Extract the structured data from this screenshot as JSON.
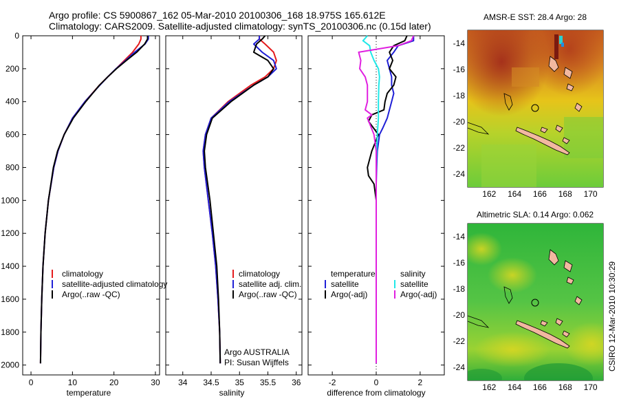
{
  "header": {
    "line1": "Argo profile: CS 5900867_162 05-Mar-2010 20100306_168 18.975S 165.612E",
    "line2": "Climatology: CARS2009. Satellite-adjusted climatology: synTS_20100306.nc (0.15d later)"
  },
  "credit": "CSIRO 12-Mar-2010 10:30:29",
  "colors": {
    "climatology": "#e41a1c",
    "satellite": "#1f1fd6",
    "argo": "#000000",
    "sat_diff": "#1fe8e8",
    "argo_sal_diff": "#e01fe0",
    "land": "#f2b8a0",
    "sst_warm": "#a0281a",
    "sla_green": "#33bb33"
  },
  "chart_data": [
    {
      "type": "line",
      "name": "temperature-profile",
      "xlabel": "temperature",
      "ylabel": "",
      "xlim": [
        -2,
        31
      ],
      "ylim": [
        2060,
        0
      ],
      "xticks": [
        0,
        10,
        20,
        30
      ],
      "yticks": [
        0,
        200,
        400,
        600,
        800,
        1000,
        1200,
        1400,
        1600,
        1800,
        2000
      ],
      "legend": [
        "climatology",
        "satellite-adjusted climatology",
        "Argo(..raw -QC)"
      ],
      "series": [
        {
          "name": "climatology",
          "color": "#e41a1c",
          "depth": [
            0,
            20,
            50,
            100,
            150,
            200,
            250,
            300,
            400,
            500,
            600,
            700,
            800,
            1000,
            1200,
            1400,
            1600,
            1800,
            1990
          ],
          "values": [
            26.5,
            26.5,
            26.0,
            24.5,
            22.5,
            20.5,
            18.5,
            16.5,
            13.0,
            10.0,
            8.0,
            6.5,
            5.5,
            4.2,
            3.4,
            2.9,
            2.6,
            2.4,
            2.3
          ]
        },
        {
          "name": "satellite-adjusted climatology",
          "color": "#1f1fd6",
          "depth": [
            0,
            20,
            50,
            100,
            150,
            200,
            250,
            300,
            400,
            500,
            600,
            700,
            800,
            1000,
            1200,
            1400,
            1600,
            1800,
            1990
          ],
          "values": [
            28.3,
            28.3,
            27.5,
            25.0,
            22.8,
            20.5,
            18.5,
            16.6,
            13.0,
            10.0,
            8.0,
            6.5,
            5.5,
            4.2,
            3.4,
            2.9,
            2.6,
            2.4,
            2.3
          ]
        },
        {
          "name": "Argo(..raw -QC)",
          "color": "#000000",
          "depth": [
            0,
            20,
            50,
            100,
            150,
            200,
            250,
            300,
            400,
            500,
            600,
            700,
            800,
            1000,
            1200,
            1400,
            1600,
            1800,
            1990
          ],
          "values": [
            28.1,
            28.1,
            27.4,
            25.5,
            23.0,
            20.6,
            18.5,
            16.5,
            13.2,
            10.2,
            8.0,
            6.4,
            5.4,
            4.2,
            3.4,
            2.9,
            2.6,
            2.4,
            2.3
          ]
        }
      ]
    },
    {
      "type": "line",
      "name": "salinity-profile",
      "xlabel": "salinity",
      "ylabel": "",
      "xlim": [
        33.7,
        36.1
      ],
      "ylim": [
        2060,
        0
      ],
      "xticks": [
        34,
        34.5,
        35,
        35.5,
        36
      ],
      "legend": [
        "climatology",
        "satellite adj. clim.",
        "Argo(..raw -QC)"
      ],
      "annotation": [
        "Argo AUSTRALIA",
        "PI: Susan Wijffels"
      ],
      "series": [
        {
          "name": "climatology",
          "color": "#e41a1c",
          "depth": [
            0,
            20,
            50,
            100,
            150,
            200,
            250,
            300,
            400,
            500,
            600,
            700,
            800,
            1000,
            1200,
            1400,
            1600,
            1800,
            1990
          ],
          "values": [
            35.35,
            35.35,
            35.45,
            35.6,
            35.65,
            35.6,
            35.45,
            35.2,
            34.8,
            34.5,
            34.4,
            34.36,
            34.38,
            34.45,
            34.52,
            34.58,
            34.62,
            34.65,
            34.66
          ]
        },
        {
          "name": "satellite adj. clim.",
          "color": "#1f1fd6",
          "depth": [
            0,
            20,
            50,
            100,
            150,
            200,
            250,
            300,
            400,
            500,
            600,
            700,
            800,
            1000,
            1200,
            1400,
            1600,
            1800,
            1990
          ],
          "values": [
            35.35,
            35.35,
            35.25,
            35.4,
            35.6,
            35.65,
            35.5,
            35.25,
            34.82,
            34.5,
            34.4,
            34.36,
            34.38,
            34.45,
            34.52,
            34.58,
            34.62,
            34.65,
            34.66
          ]
        },
        {
          "name": "Argo(..raw -QC)",
          "color": "#000000",
          "depth": [
            0,
            20,
            50,
            100,
            150,
            200,
            250,
            300,
            400,
            500,
            600,
            700,
            800,
            1000,
            1200,
            1400,
            1600,
            1800,
            1990
          ],
          "values": [
            35.45,
            35.4,
            35.3,
            35.25,
            35.5,
            35.6,
            35.5,
            35.25,
            34.85,
            34.52,
            34.42,
            34.38,
            34.4,
            34.48,
            34.54,
            34.6,
            34.63,
            34.65,
            34.66
          ]
        }
      ]
    },
    {
      "type": "line",
      "name": "difference-profile",
      "xlabel": "difference from climatology",
      "ylabel": "",
      "xlim": [
        -3.1,
        3.1
      ],
      "ylim": [
        2060,
        0
      ],
      "xticks": [
        -2,
        0,
        2
      ],
      "legend_headers": [
        "temperature",
        "salinity"
      ],
      "legend": [
        "satellite",
        "Argo(-adj)",
        "satellite",
        "Argo(-adj)"
      ],
      "series": [
        {
          "name": "temperature satellite",
          "color": "#1f1fd6",
          "depth": [
            0,
            30,
            60,
            100,
            150,
            200,
            250,
            300,
            350,
            400,
            450,
            500,
            560,
            600,
            700,
            800,
            900,
            1000,
            1200,
            1400,
            1600,
            1800,
            1990
          ],
          "values": [
            1.7,
            1.7,
            1.0,
            0.8,
            0.5,
            0.6,
            0.7,
            0.7,
            0.8,
            0.7,
            0.6,
            0.5,
            0.3,
            0.15,
            0.05,
            0.02,
            0.0,
            0.0,
            0.0,
            0.0,
            0.0,
            0.0,
            0.0
          ]
        },
        {
          "name": "temperature Argo(-adj)",
          "color": "#000000",
          "depth": [
            0,
            30,
            60,
            100,
            150,
            200,
            250,
            300,
            350,
            400,
            450,
            480,
            520,
            600,
            700,
            800,
            850,
            900,
            1000,
            1200,
            1400,
            1600,
            1800,
            1990
          ],
          "values": [
            1.4,
            1.3,
            0.8,
            0.6,
            0.75,
            0.6,
            0.9,
            0.8,
            0.5,
            0.4,
            0.35,
            -0.2,
            -0.35,
            0.1,
            -0.2,
            -0.4,
            -0.35,
            -0.1,
            0.0,
            0.0,
            0.0,
            0.0,
            0.0,
            0.0
          ]
        },
        {
          "name": "salinity satellite",
          "color": "#1fe8e8",
          "depth": [
            0,
            30,
            60,
            100,
            150,
            200,
            250,
            300,
            400,
            500,
            600,
            700,
            800,
            900,
            1000,
            1200,
            1400,
            1600,
            1800,
            1990
          ],
          "values": [
            -0.4,
            -0.6,
            -0.3,
            -0.25,
            -0.1,
            0.1,
            0.15,
            0.12,
            0.1,
            0.1,
            0.05,
            0.02,
            0.0,
            0.0,
            0.0,
            0.0,
            0.0,
            0.0,
            0.0,
            0.0
          ]
        },
        {
          "name": "salinity Argo(-adj)",
          "color": "#e01fe0",
          "depth": [
            0,
            30,
            60,
            100,
            150,
            200,
            250,
            300,
            400,
            450,
            480,
            500,
            550,
            600,
            700,
            800,
            900,
            1000,
            1200,
            1400,
            1600,
            1800,
            1990
          ],
          "values": [
            1.7,
            1.6,
            1.0,
            -0.8,
            -0.7,
            -0.75,
            -0.5,
            -0.4,
            -0.4,
            -0.5,
            -0.2,
            -0.4,
            -0.25,
            -0.1,
            0.0,
            0.0,
            0.0,
            0.0,
            0.0,
            0.0,
            0.0,
            0.0,
            0.0
          ]
        }
      ]
    },
    {
      "type": "heatmap",
      "name": "sst-map",
      "title": "AMSR-E SST: 28.4 Argo: 28",
      "xlim": [
        160.3,
        171.0
      ],
      "ylim": [
        -25.0,
        -13.0
      ],
      "xticks": [
        162,
        164,
        166,
        168,
        170
      ],
      "yticks": [
        -14,
        -16,
        -18,
        -20,
        -22,
        -24
      ],
      "marker": {
        "lon": 165.612,
        "lat": -18.975
      }
    },
    {
      "type": "heatmap",
      "name": "sla-map",
      "title": "Altimetric SLA: 0.14 Argo: 0.062",
      "xlim": [
        160.3,
        171.0
      ],
      "ylim": [
        -25.0,
        -13.0
      ],
      "xticks": [
        162,
        164,
        166,
        168,
        170
      ],
      "yticks": [
        -14,
        -16,
        -18,
        -20,
        -22,
        -24
      ],
      "marker": {
        "lon": 165.612,
        "lat": -18.975
      }
    }
  ]
}
